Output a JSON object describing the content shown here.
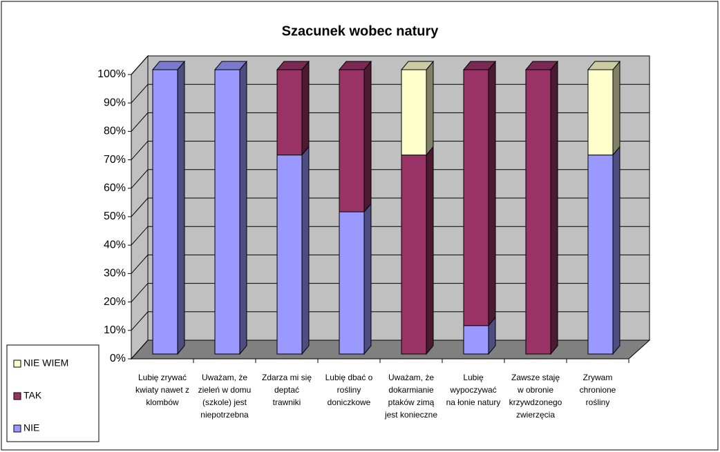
{
  "chart_data": {
    "type": "bar3d_stacked",
    "title": "Szacunek wobec natury",
    "categories": [
      [
        "Lubię zrywać",
        "kwiaty nawet z",
        "klombów"
      ],
      [
        "Uważam, że",
        "zieleń w domu",
        "(szkole) jest",
        "niepotrzebna"
      ],
      [
        "Zdarza mi się",
        "deptać",
        "trawniki"
      ],
      [
        "Lubię dbać o",
        "rośliny",
        "doniczkowe"
      ],
      [
        "Uważam, że",
        "dokarmianie",
        "ptaków zimą",
        "jest konieczne"
      ],
      [
        "Lubię",
        "wypoczywać",
        "na łonie natury"
      ],
      [
        "Zawsze staję",
        "w obronie",
        "krzywdzonego",
        "zwierzęcia"
      ],
      [
        "Zrywam",
        "chronione",
        "rośliny"
      ]
    ],
    "series": [
      {
        "name": "NIE",
        "color": "#9999ff",
        "values": [
          100,
          100,
          70,
          50,
          0,
          10,
          0,
          70
        ]
      },
      {
        "name": "TAK",
        "color": "#993366",
        "values": [
          0,
          0,
          30,
          50,
          70,
          90,
          100,
          0
        ]
      },
      {
        "name": "NIE WIEM",
        "color": "#ffffcc",
        "values": [
          0,
          0,
          0,
          0,
          30,
          0,
          0,
          30
        ]
      }
    ],
    "ylim": [
      0,
      100
    ],
    "yticks": [
      {
        "value": 0,
        "label": "0%"
      },
      {
        "value": 10,
        "label": "10%"
      },
      {
        "value": 20,
        "label": "20%"
      },
      {
        "value": 30,
        "label": "30%"
      },
      {
        "value": 40,
        "label": "40%"
      },
      {
        "value": 50,
        "label": "50%"
      },
      {
        "value": 60,
        "label": "60%"
      },
      {
        "value": 70,
        "label": "70%"
      },
      {
        "value": 80,
        "label": "80%"
      },
      {
        "value": 90,
        "label": "90%"
      },
      {
        "value": 100,
        "label": "100%"
      }
    ],
    "grid": true,
    "legend": "left"
  }
}
